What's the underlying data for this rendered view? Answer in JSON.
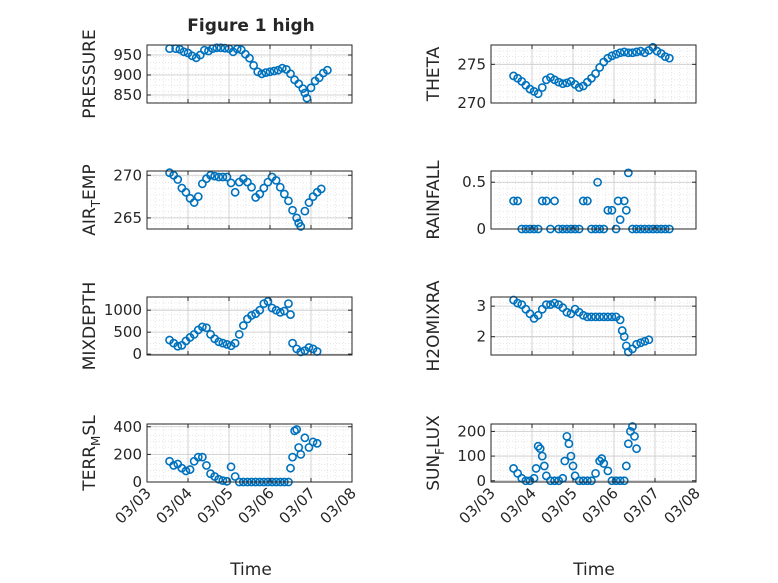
{
  "figure": {
    "title": "Figure 1 high",
    "marker_color": "#0072BD",
    "x_label": "Time"
  },
  "chart_data": [
    {
      "type": "scatter",
      "ylabel": "PRESSURE",
      "ylim": [
        830,
        975
      ],
      "yticks": [
        850,
        900,
        950
      ],
      "xlim": [
        0,
        5
      ],
      "grid": true,
      "points": [
        [
          0.55,
          966
        ],
        [
          0.7,
          966
        ],
        [
          0.8,
          964
        ],
        [
          0.9,
          958
        ],
        [
          1.0,
          955
        ],
        [
          1.1,
          948
        ],
        [
          1.2,
          943
        ],
        [
          1.3,
          950
        ],
        [
          1.4,
          962
        ],
        [
          1.5,
          960
        ],
        [
          1.6,
          966
        ],
        [
          1.7,
          968
        ],
        [
          1.8,
          968
        ],
        [
          1.9,
          967
        ],
        [
          2.0,
          966
        ],
        [
          2.1,
          958
        ],
        [
          2.2,
          965
        ],
        [
          2.3,
          963
        ],
        [
          2.4,
          952
        ],
        [
          2.5,
          942
        ],
        [
          2.6,
          924
        ],
        [
          2.7,
          908
        ],
        [
          2.8,
          903
        ],
        [
          2.9,
          906
        ],
        [
          3.0,
          908
        ],
        [
          3.1,
          910
        ],
        [
          3.2,
          912
        ],
        [
          3.3,
          917
        ],
        [
          3.4,
          914
        ],
        [
          3.5,
          903
        ],
        [
          3.6,
          888
        ],
        [
          3.7,
          878
        ],
        [
          3.8,
          866
        ],
        [
          3.85,
          855
        ],
        [
          3.9,
          842
        ],
        [
          4.0,
          868
        ],
        [
          4.1,
          885
        ],
        [
          4.2,
          893
        ],
        [
          4.3,
          905
        ],
        [
          4.4,
          912
        ]
      ]
    },
    {
      "type": "scatter",
      "ylabel": "THETA",
      "ylim": [
        270,
        277.5
      ],
      "yticks": [
        270,
        275
      ],
      "xlim": [
        0,
        5
      ],
      "grid": true,
      "points": [
        [
          0.55,
          273.5
        ],
        [
          0.65,
          273.2
        ],
        [
          0.75,
          272.8
        ],
        [
          0.85,
          272.3
        ],
        [
          0.95,
          271.8
        ],
        [
          1.05,
          271.5
        ],
        [
          1.15,
          271.2
        ],
        [
          1.25,
          272.0
        ],
        [
          1.35,
          273.0
        ],
        [
          1.45,
          273.3
        ],
        [
          1.55,
          273.0
        ],
        [
          1.65,
          272.7
        ],
        [
          1.75,
          272.5
        ],
        [
          1.85,
          272.6
        ],
        [
          1.95,
          272.8
        ],
        [
          2.05,
          272.4
        ],
        [
          2.15,
          272.0
        ],
        [
          2.25,
          272.2
        ],
        [
          2.35,
          272.7
        ],
        [
          2.45,
          273.2
        ],
        [
          2.55,
          273.8
        ],
        [
          2.65,
          274.6
        ],
        [
          2.75,
          275.3
        ],
        [
          2.85,
          275.8
        ],
        [
          2.95,
          276.1
        ],
        [
          3.05,
          276.3
        ],
        [
          3.15,
          276.5
        ],
        [
          3.25,
          276.6
        ],
        [
          3.35,
          276.5
        ],
        [
          3.45,
          276.5
        ],
        [
          3.55,
          276.6
        ],
        [
          3.65,
          276.7
        ],
        [
          3.75,
          276.5
        ],
        [
          3.85,
          276.8
        ],
        [
          3.95,
          277.2
        ],
        [
          4.05,
          276.7
        ],
        [
          4.15,
          276.4
        ],
        [
          4.25,
          276.0
        ],
        [
          4.35,
          275.8
        ]
      ]
    },
    {
      "type": "scatter",
      "ylabel": "AIR_TEMP",
      "ylim": [
        263.7,
        270.5
      ],
      "yticks": [
        265,
        270
      ],
      "xlim": [
        0,
        5
      ],
      "grid": true,
      "points": [
        [
          0.55,
          270.3
        ],
        [
          0.65,
          270.0
        ],
        [
          0.75,
          269.5
        ],
        [
          0.85,
          268.5
        ],
        [
          0.95,
          268.0
        ],
        [
          1.05,
          267.3
        ],
        [
          1.15,
          266.8
        ],
        [
          1.25,
          267.5
        ],
        [
          1.35,
          269.0
        ],
        [
          1.45,
          269.6
        ],
        [
          1.55,
          270.0
        ],
        [
          1.65,
          269.9
        ],
        [
          1.75,
          269.8
        ],
        [
          1.85,
          269.8
        ],
        [
          1.95,
          269.8
        ],
        [
          2.05,
          269.1
        ],
        [
          2.15,
          268.0
        ],
        [
          2.25,
          269.2
        ],
        [
          2.35,
          269.6
        ],
        [
          2.45,
          269.2
        ],
        [
          2.55,
          268.6
        ],
        [
          2.65,
          267.4
        ],
        [
          2.75,
          267.8
        ],
        [
          2.85,
          268.5
        ],
        [
          2.95,
          269.2
        ],
        [
          3.05,
          269.8
        ],
        [
          3.15,
          269.4
        ],
        [
          3.25,
          268.6
        ],
        [
          3.35,
          267.8
        ],
        [
          3.45,
          267.0
        ],
        [
          3.55,
          265.9
        ],
        [
          3.65,
          265.0
        ],
        [
          3.7,
          264.4
        ],
        [
          3.75,
          264.0
        ],
        [
          3.85,
          265.8
        ],
        [
          3.95,
          266.8
        ],
        [
          4.05,
          267.5
        ],
        [
          4.15,
          268.0
        ],
        [
          4.25,
          268.4
        ]
      ]
    },
    {
      "type": "scatter",
      "ylabel": "RAINFALL",
      "ylim": [
        0,
        0.62
      ],
      "yticks": [
        0,
        0.5
      ],
      "xlim": [
        0,
        5
      ],
      "grid": true,
      "points": [
        [
          0.55,
          0.3
        ],
        [
          0.65,
          0.3
        ],
        [
          0.75,
          0
        ],
        [
          0.85,
          0
        ],
        [
          0.95,
          0
        ],
        [
          1.05,
          0
        ],
        [
          1.15,
          0
        ],
        [
          1.25,
          0.3
        ],
        [
          1.35,
          0.3
        ],
        [
          1.45,
          0
        ],
        [
          1.55,
          0.3
        ],
        [
          1.65,
          0
        ],
        [
          1.75,
          0
        ],
        [
          1.85,
          0
        ],
        [
          1.95,
          0
        ],
        [
          2.05,
          0
        ],
        [
          2.15,
          0
        ],
        [
          2.25,
          0.3
        ],
        [
          2.35,
          0.3
        ],
        [
          2.45,
          0
        ],
        [
          2.55,
          0
        ],
        [
          2.6,
          0.5
        ],
        [
          2.65,
          0
        ],
        [
          2.75,
          0
        ],
        [
          2.85,
          0.2
        ],
        [
          2.95,
          0.2
        ],
        [
          3.05,
          0
        ],
        [
          3.1,
          0.3
        ],
        [
          3.15,
          0.1
        ],
        [
          3.25,
          0.3
        ],
        [
          3.3,
          0.2
        ],
        [
          3.35,
          0.6
        ],
        [
          3.45,
          0
        ],
        [
          3.55,
          0
        ],
        [
          3.65,
          0
        ],
        [
          3.75,
          0
        ],
        [
          3.85,
          0
        ],
        [
          3.95,
          0
        ],
        [
          4.05,
          0
        ],
        [
          4.15,
          0
        ],
        [
          4.25,
          0
        ],
        [
          4.35,
          0
        ]
      ]
    },
    {
      "type": "scatter",
      "ylabel": "MIXDEPTH",
      "ylim": [
        -20,
        1300
      ],
      "yticks": [
        0,
        500,
        1000
      ],
      "xlim": [
        0,
        5
      ],
      "grid": true,
      "points": [
        [
          0.55,
          320
        ],
        [
          0.65,
          250
        ],
        [
          0.75,
          180
        ],
        [
          0.85,
          200
        ],
        [
          0.95,
          300
        ],
        [
          1.05,
          380
        ],
        [
          1.15,
          450
        ],
        [
          1.25,
          550
        ],
        [
          1.35,
          620
        ],
        [
          1.45,
          600
        ],
        [
          1.55,
          450
        ],
        [
          1.65,
          350
        ],
        [
          1.75,
          280
        ],
        [
          1.85,
          250
        ],
        [
          1.95,
          220
        ],
        [
          2.05,
          190
        ],
        [
          2.15,
          250
        ],
        [
          2.25,
          450
        ],
        [
          2.35,
          650
        ],
        [
          2.45,
          800
        ],
        [
          2.55,
          880
        ],
        [
          2.65,
          920
        ],
        [
          2.75,
          1000
        ],
        [
          2.85,
          1150
        ],
        [
          2.95,
          1200
        ],
        [
          3.05,
          1050
        ],
        [
          3.15,
          1000
        ],
        [
          3.25,
          950
        ],
        [
          3.35,
          980
        ],
        [
          3.45,
          1150
        ],
        [
          3.5,
          900
        ],
        [
          3.55,
          250
        ],
        [
          3.65,
          120
        ],
        [
          3.75,
          50
        ],
        [
          3.85,
          80
        ],
        [
          3.95,
          150
        ],
        [
          4.05,
          120
        ],
        [
          4.15,
          60
        ]
      ]
    },
    {
      "type": "scatter",
      "ylabel": "H2OMIXRA",
      "ylim": [
        1.4,
        3.3
      ],
      "yticks": [
        2,
        3
      ],
      "xlim": [
        0,
        5
      ],
      "grid": true,
      "points": [
        [
          0.55,
          3.2
        ],
        [
          0.65,
          3.1
        ],
        [
          0.75,
          3.05
        ],
        [
          0.85,
          2.9
        ],
        [
          0.95,
          2.75
        ],
        [
          1.05,
          2.6
        ],
        [
          1.15,
          2.7
        ],
        [
          1.25,
          2.9
        ],
        [
          1.35,
          3.05
        ],
        [
          1.45,
          3.05
        ],
        [
          1.55,
          3.1
        ],
        [
          1.65,
          3.05
        ],
        [
          1.75,
          2.95
        ],
        [
          1.85,
          2.8
        ],
        [
          1.95,
          2.75
        ],
        [
          2.05,
          2.9
        ],
        [
          2.15,
          2.8
        ],
        [
          2.25,
          2.7
        ],
        [
          2.35,
          2.65
        ],
        [
          2.45,
          2.65
        ],
        [
          2.55,
          2.65
        ],
        [
          2.65,
          2.65
        ],
        [
          2.75,
          2.65
        ],
        [
          2.85,
          2.65
        ],
        [
          2.95,
          2.65
        ],
        [
          3.05,
          2.65
        ],
        [
          3.15,
          2.55
        ],
        [
          3.2,
          2.2
        ],
        [
          3.25,
          2.0
        ],
        [
          3.3,
          1.7
        ],
        [
          3.35,
          1.5
        ],
        [
          3.45,
          1.6
        ],
        [
          3.55,
          1.75
        ],
        [
          3.65,
          1.8
        ],
        [
          3.75,
          1.85
        ],
        [
          3.85,
          1.9
        ]
      ]
    },
    {
      "type": "scatter",
      "ylabel": "TERR_MSL",
      "ylim": [
        0,
        420
      ],
      "yticks": [
        0,
        200,
        400
      ],
      "xlim": [
        0,
        5
      ],
      "grid": true,
      "points": [
        [
          0.55,
          150
        ],
        [
          0.65,
          120
        ],
        [
          0.75,
          130
        ],
        [
          0.85,
          100
        ],
        [
          0.95,
          80
        ],
        [
          1.05,
          90
        ],
        [
          1.15,
          150
        ],
        [
          1.25,
          180
        ],
        [
          1.35,
          180
        ],
        [
          1.45,
          120
        ],
        [
          1.55,
          60
        ],
        [
          1.65,
          40
        ],
        [
          1.75,
          20
        ],
        [
          1.85,
          10
        ],
        [
          1.95,
          5
        ],
        [
          2.05,
          110
        ],
        [
          2.15,
          40
        ],
        [
          2.25,
          0
        ],
        [
          2.35,
          0
        ],
        [
          2.45,
          0
        ],
        [
          2.55,
          0
        ],
        [
          2.65,
          0
        ],
        [
          2.75,
          0
        ],
        [
          2.85,
          0
        ],
        [
          2.95,
          0
        ],
        [
          3.05,
          0
        ],
        [
          3.15,
          0
        ],
        [
          3.25,
          0
        ],
        [
          3.35,
          0
        ],
        [
          3.45,
          0
        ],
        [
          3.5,
          100
        ],
        [
          3.55,
          180
        ],
        [
          3.6,
          370
        ],
        [
          3.65,
          380
        ],
        [
          3.7,
          250
        ],
        [
          3.75,
          200
        ],
        [
          3.85,
          320
        ],
        [
          3.95,
          250
        ],
        [
          4.05,
          290
        ],
        [
          4.15,
          280
        ]
      ]
    },
    {
      "type": "scatter",
      "ylabel": "SUN_FLUX",
      "ylim": [
        -5,
        230
      ],
      "yticks": [
        0,
        100,
        200
      ],
      "xlim": [
        0,
        5
      ],
      "grid": true,
      "points": [
        [
          0.55,
          50
        ],
        [
          0.65,
          30
        ],
        [
          0.75,
          10
        ],
        [
          0.85,
          0
        ],
        [
          0.95,
          0
        ],
        [
          1.05,
          10
        ],
        [
          1.1,
          50
        ],
        [
          1.15,
          140
        ],
        [
          1.2,
          130
        ],
        [
          1.25,
          100
        ],
        [
          1.3,
          60
        ],
        [
          1.35,
          20
        ],
        [
          1.45,
          0
        ],
        [
          1.55,
          0
        ],
        [
          1.65,
          0
        ],
        [
          1.75,
          10
        ],
        [
          1.8,
          80
        ],
        [
          1.85,
          180
        ],
        [
          1.9,
          150
        ],
        [
          1.95,
          100
        ],
        [
          2.0,
          60
        ],
        [
          2.05,
          20
        ],
        [
          2.15,
          0
        ],
        [
          2.25,
          0
        ],
        [
          2.35,
          0
        ],
        [
          2.45,
          0
        ],
        [
          2.55,
          30
        ],
        [
          2.65,
          80
        ],
        [
          2.7,
          90
        ],
        [
          2.75,
          70
        ],
        [
          2.85,
          40
        ],
        [
          2.95,
          0
        ],
        [
          3.05,
          0
        ],
        [
          3.15,
          0
        ],
        [
          3.25,
          0
        ],
        [
          3.3,
          60
        ],
        [
          3.35,
          150
        ],
        [
          3.4,
          200
        ],
        [
          3.45,
          220
        ],
        [
          3.5,
          180
        ],
        [
          3.55,
          130
        ]
      ]
    }
  ],
  "x_tick_labels": [
    "03/03",
    "03/04",
    "03/05",
    "03/06",
    "03/07",
    "03/08"
  ]
}
